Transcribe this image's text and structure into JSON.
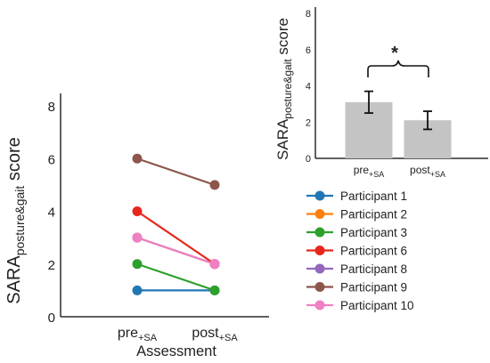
{
  "chart_data": [
    {
      "type": "line",
      "xlabel": "Assessment",
      "ylabel_main": "SARA",
      "ylabel_sub": "posture&gait",
      "ylabel_tail": " score",
      "categories": [
        {
          "main": "pre",
          "sub": "+SA"
        },
        {
          "main": "post",
          "sub": "+SA"
        }
      ],
      "ylim": [
        0,
        8
      ],
      "yticks": [
        0,
        2,
        4,
        6,
        8
      ],
      "series": [
        {
          "name": "Participant 1",
          "color": "#1f77b4",
          "values": [
            1,
            1
          ]
        },
        {
          "name": "Participant 2",
          "color": "#ff7f0e",
          "values": [
            3,
            2
          ]
        },
        {
          "name": "Participant 3",
          "color": "#2ca02c",
          "values": [
            2,
            1
          ]
        },
        {
          "name": "Participant 6",
          "color": "#e8261b",
          "values": [
            4,
            2
          ]
        },
        {
          "name": "Participant 8",
          "color": "#9467bd",
          "values": [
            3,
            2
          ]
        },
        {
          "name": "Participant 9",
          "color": "#8c564b",
          "values": [
            6,
            5
          ]
        },
        {
          "name": "Participant 10",
          "color": "#f07fc3",
          "values": [
            3,
            2
          ]
        }
      ]
    },
    {
      "type": "bar",
      "ylabel_main": "SARA",
      "ylabel_sub": "posture&gait",
      "ylabel_tail": " score",
      "categories": [
        {
          "main": "pre",
          "sub": "+SA"
        },
        {
          "main": "post",
          "sub": "+SA"
        }
      ],
      "values": [
        3.1,
        2.1
      ],
      "errors": [
        0.6,
        0.5
      ],
      "bar_color": "#c4c4c4",
      "ylim": [
        0,
        8
      ],
      "yticks": [
        0,
        2,
        4,
        6,
        8
      ],
      "significance": "*"
    }
  ]
}
